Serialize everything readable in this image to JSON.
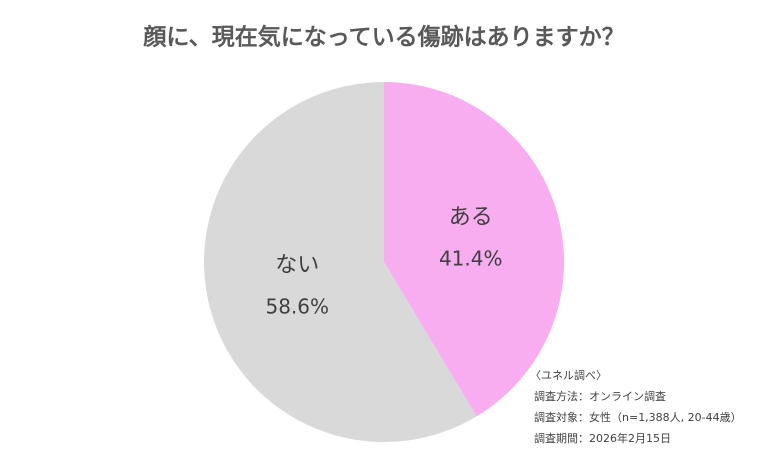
{
  "chart_data": {
    "type": "pie",
    "title": "顔に、現在気になっている傷跡はありますか？",
    "categories": [
      "ある",
      "ない"
    ],
    "values": [
      41.4,
      58.6
    ],
    "value_labels": [
      "41.4%",
      "58.6%"
    ],
    "colors": [
      "#f7adf0",
      "#d9d9d9"
    ],
    "notes": [
      "〈ユネル調べ〉",
      "調査方法：オンライン調査",
      "調査対象：女性（n=1,388人, 20-44歳）",
      "調査期間：2026年2月15日"
    ]
  }
}
